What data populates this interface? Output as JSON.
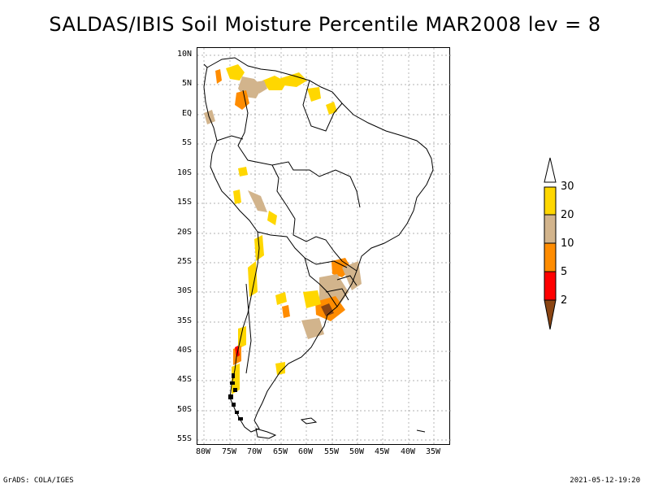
{
  "title": "SALDAS/IBIS Soil Moisture Percentile MAR2008 lev = 8",
  "map": {
    "lat_labels": [
      "10N",
      "5N",
      "EQ",
      "5S",
      "10S",
      "15S",
      "20S",
      "25S",
      "30S",
      "35S",
      "40S",
      "45S",
      "50S",
      "55S"
    ],
    "lon_labels": [
      "80W",
      "75W",
      "70W",
      "65W",
      "60W",
      "55W",
      "50W",
      "45W",
      "40W",
      "35W"
    ]
  },
  "colorbar": {
    "labels": [
      "30",
      "20",
      "10",
      "5",
      "2"
    ],
    "colors": {
      "above_30": "#ffffff",
      "20_30": "#ffd700",
      "10_20": "#d2b48c",
      "5_10": "#ff8c00",
      "2_5": "#ff0000",
      "below_2": "#8b4513"
    }
  },
  "footer": {
    "left": "GrADS: COLA/IGES",
    "right": "2021-05-12-19:20"
  }
}
